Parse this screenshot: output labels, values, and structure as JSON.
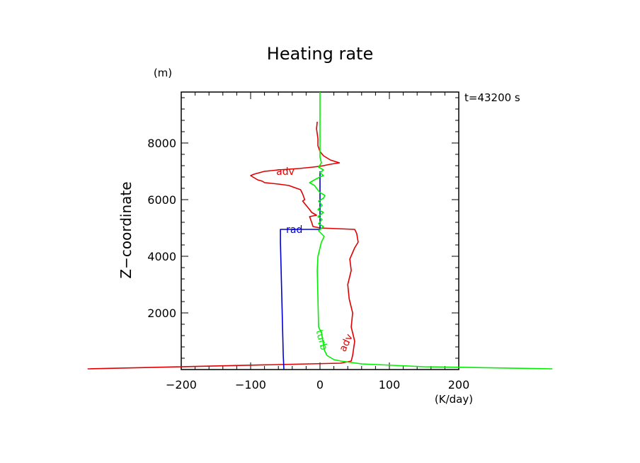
{
  "chart_data": {
    "type": "line",
    "title": "Heating rate",
    "xlabel": "(K/day)",
    "ylabel": "Z−coordinate",
    "y_unit": "(m)",
    "time_label": "t=43200 s",
    "xlim": [
      -200,
      200
    ],
    "ylim": [
      0,
      9800
    ],
    "x_ticks": [
      -200,
      -100,
      0,
      100,
      200
    ],
    "x_tick_labels": [
      "−200",
      "−100",
      "0",
      "100",
      "200"
    ],
    "y_ticks": [
      2000,
      4000,
      6000,
      8000
    ],
    "y_tick_labels": [
      "2000",
      "4000",
      "6000",
      "8000"
    ],
    "grid": false,
    "series": [
      {
        "name": "adv",
        "color": "#e00000",
        "points": [
          [
            -335,
            25
          ],
          [
            30,
            225
          ],
          [
            45,
            300
          ],
          [
            47,
            500
          ],
          [
            50,
            1000
          ],
          [
            45,
            1500
          ],
          [
            47,
            2000
          ],
          [
            42,
            2500
          ],
          [
            40,
            3000
          ],
          [
            45,
            3500
          ],
          [
            43,
            3900
          ],
          [
            50,
            4300
          ],
          [
            55,
            4500
          ],
          [
            53,
            4800
          ],
          [
            50,
            4950
          ],
          [
            0,
            5000
          ],
          [
            -10,
            5050
          ],
          [
            -12,
            5200
          ],
          [
            -15,
            5400
          ],
          [
            -5,
            5450
          ],
          [
            -12,
            5550
          ],
          [
            -15,
            5650
          ],
          [
            -20,
            5800
          ],
          [
            -25,
            5950
          ],
          [
            -22,
            6000
          ],
          [
            -25,
            6200
          ],
          [
            -28,
            6350
          ],
          [
            -45,
            6500
          ],
          [
            -60,
            6550
          ],
          [
            -80,
            6600
          ],
          [
            -83,
            6650
          ],
          [
            -90,
            6700
          ],
          [
            -100,
            6850
          ],
          [
            -95,
            6900
          ],
          [
            -80,
            7000
          ],
          [
            -60,
            7050
          ],
          [
            -30,
            7100
          ],
          [
            -10,
            7150
          ],
          [
            0,
            7180
          ],
          [
            5,
            7200
          ],
          [
            15,
            7250
          ],
          [
            28,
            7300
          ],
          [
            15,
            7400
          ],
          [
            5,
            7550
          ],
          [
            0,
            7700
          ],
          [
            -3,
            7900
          ],
          [
            -3,
            8150
          ],
          [
            -5,
            8500
          ],
          [
            -4,
            8750
          ]
        ],
        "labels": [
          {
            "text": "adv",
            "at": [
              -50,
              7000
            ]
          },
          {
            "text": "adv",
            "at": [
              37,
              950
            ]
          }
        ]
      },
      {
        "name": "rad",
        "color": "#0000d0",
        "points": [
          [
            -52,
            0
          ],
          [
            -53,
            500
          ],
          [
            -54,
            1500
          ],
          [
            -55,
            2500
          ],
          [
            -56,
            3500
          ],
          [
            -57,
            4500
          ],
          [
            -57,
            4950
          ],
          [
            -20,
            4950
          ],
          [
            0,
            4950
          ],
          [
            0,
            5200
          ],
          [
            0,
            6000
          ],
          [
            0,
            7000
          ]
        ],
        "labels": [
          {
            "text": "rad",
            "at": [
              -37,
              4950
            ]
          }
        ]
      },
      {
        "name": "turb",
        "color": "#00f000",
        "points": [
          [
            335,
            25
          ],
          [
            150,
            100
          ],
          [
            60,
            200
          ],
          [
            30,
            300
          ],
          [
            20,
            350
          ],
          [
            10,
            500
          ],
          [
            6,
            700
          ],
          [
            5,
            900
          ],
          [
            2,
            1300
          ],
          [
            -2,
            1500
          ],
          [
            -3,
            2500
          ],
          [
            -4,
            3500
          ],
          [
            -3,
            4000
          ],
          [
            2,
            4500
          ],
          [
            6,
            4700
          ],
          [
            -2,
            4900
          ],
          [
            5,
            5050
          ],
          [
            -2,
            5150
          ],
          [
            3,
            5300
          ],
          [
            -3,
            5400
          ],
          [
            5,
            5550
          ],
          [
            -3,
            5650
          ],
          [
            3,
            5800
          ],
          [
            -2,
            5950
          ],
          [
            5,
            6050
          ],
          [
            7,
            6150
          ],
          [
            0,
            6250
          ],
          [
            -5,
            6400
          ],
          [
            -8,
            6500
          ],
          [
            -15,
            6600
          ],
          [
            -8,
            6700
          ],
          [
            0,
            6800
          ],
          [
            5,
            6850
          ],
          [
            0,
            6950
          ],
          [
            5,
            7050
          ],
          [
            -2,
            7150
          ],
          [
            2,
            7300
          ],
          [
            0,
            7500
          ],
          [
            0,
            8000
          ],
          [
            0,
            8500
          ],
          [
            0,
            9000
          ],
          [
            0,
            9500
          ],
          [
            0,
            9800
          ]
        ],
        "labels": [
          {
            "text": "turb",
            "at": [
              3,
              1050
            ]
          }
        ]
      }
    ]
  }
}
